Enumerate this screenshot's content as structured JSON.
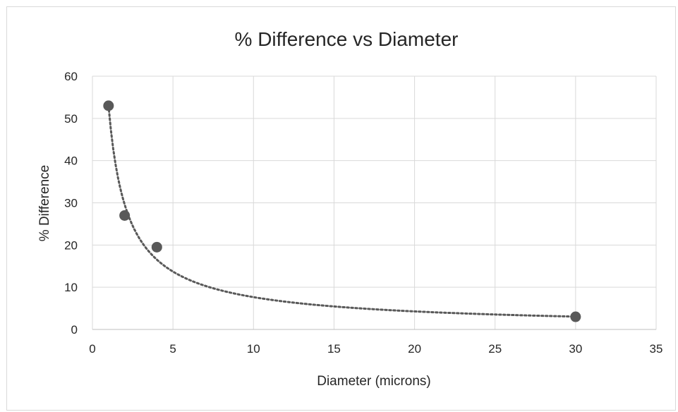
{
  "chart_data": {
    "type": "scatter",
    "title": "% Difference vs Diameter",
    "xlabel": "Diameter (microns)",
    "ylabel": "% Difference",
    "xlim": [
      0,
      35
    ],
    "ylim": [
      0,
      60
    ],
    "x_ticks": [
      "0",
      "5",
      "10",
      "15",
      "20",
      "25",
      "30",
      "35"
    ],
    "y_ticks": [
      "0",
      "10",
      "20",
      "30",
      "40",
      "50",
      "60"
    ],
    "grid": true,
    "legend": "none",
    "trendline": {
      "style": "dotted",
      "kind": "power",
      "fit": {
        "a": 53,
        "b": -0.84
      }
    },
    "series": [
      {
        "x": [
          1,
          2,
          4,
          30
        ],
        "y": [
          53,
          27,
          19.5,
          3
        ],
        "color": "#595959"
      }
    ],
    "colors": {
      "gridline": "#d9d9d9",
      "marker": "#595959",
      "trendline": "#595959",
      "text": "#262626"
    }
  }
}
